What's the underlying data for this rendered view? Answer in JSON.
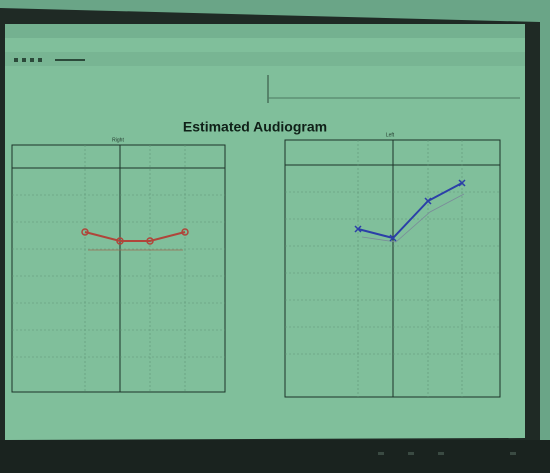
{
  "screen": {
    "title": "Estimated Audiogram",
    "left_chart": {
      "label": "Right"
    },
    "right_chart": {
      "label": "Left"
    }
  }
}
